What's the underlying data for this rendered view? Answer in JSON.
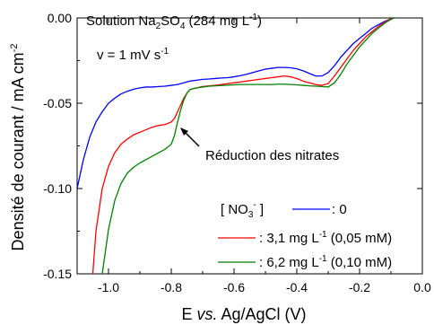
{
  "chart_data": {
    "type": "line",
    "xlabel": {
      "prefix": "E ",
      "italic": "vs.",
      "suffix": " Ag/AgCl (V)"
    },
    "ylabel": "Densité de courant / mA cm",
    "ylabel_sup": "-2",
    "xlim": [
      -1.1,
      0.0
    ],
    "ylim": [
      -0.15,
      0.0
    ],
    "x_ticks": [
      -1.0,
      -0.8,
      -0.6,
      -0.4,
      -0.2,
      0.0
    ],
    "x_tick_labels": [
      "-1.0",
      "-0.8",
      "-0.6",
      "-0.4",
      "-0.2",
      "0.0"
    ],
    "y_ticks": [
      0.0,
      -0.05,
      -0.1,
      -0.15
    ],
    "y_tick_labels": [
      "0.00",
      "-0.05",
      "-0.10",
      "-0.15"
    ],
    "grid": false,
    "legend_position": "bottom-right",
    "annotations": {
      "solution": {
        "text": "Solution Na",
        "sub": "2",
        "mid": "SO",
        "sub2": "4",
        "tail": " (284 mg L",
        "sup": "-1",
        "end": ")"
      },
      "scan_rate": {
        "text": "v = 1 mV s",
        "sup": "-1"
      },
      "arrow_label": "Réduction des nitrates",
      "arrow_target": {
        "x": -0.78,
        "y": -0.0555
      },
      "legend_title": {
        "text": "[ NO",
        "sub": "3",
        "sup": "-",
        "end": " ]"
      }
    },
    "series": [
      {
        "name": ": 0",
        "color": "#0000ff",
        "x": [
          -1.1,
          -1.08,
          -1.06,
          -1.04,
          -1.02,
          -1.0,
          -0.98,
          -0.96,
          -0.94,
          -0.92,
          -0.9,
          -0.88,
          -0.86,
          -0.84,
          -0.82,
          -0.8,
          -0.78,
          -0.76,
          -0.74,
          -0.72,
          -0.7,
          -0.68,
          -0.66,
          -0.64,
          -0.62,
          -0.6,
          -0.58,
          -0.56,
          -0.54,
          -0.52,
          -0.5,
          -0.48,
          -0.46,
          -0.44,
          -0.42,
          -0.4,
          -0.38,
          -0.36,
          -0.34,
          -0.32,
          -0.3,
          -0.28,
          -0.26,
          -0.24,
          -0.22,
          -0.2,
          -0.18,
          -0.16,
          -0.14,
          -0.12,
          -0.1,
          -0.09
        ],
        "y": [
          -0.1,
          -0.083,
          -0.07,
          -0.061,
          -0.055,
          -0.05,
          -0.047,
          -0.0445,
          -0.043,
          -0.0418,
          -0.041,
          -0.0405,
          -0.0405,
          -0.0402,
          -0.04,
          -0.0395,
          -0.039,
          -0.038,
          -0.037,
          -0.0365,
          -0.036,
          -0.0358,
          -0.0355,
          -0.0352,
          -0.035,
          -0.0345,
          -0.0338,
          -0.033,
          -0.032,
          -0.031,
          -0.03,
          -0.0295,
          -0.029,
          -0.029,
          -0.0292,
          -0.0298,
          -0.031,
          -0.0325,
          -0.034,
          -0.034,
          -0.032,
          -0.028,
          -0.023,
          -0.019,
          -0.015,
          -0.012,
          -0.009,
          -0.006,
          -0.004,
          -0.002,
          -0.0005,
          0.0
        ]
      },
      {
        "name": ": 3,1 mg L",
        "name_sup": "-1",
        "name_tail": " (0,05 mM)",
        "color": "#ff0000",
        "x": [
          -1.05,
          -1.04,
          -1.02,
          -1.0,
          -0.98,
          -0.96,
          -0.94,
          -0.92,
          -0.9,
          -0.88,
          -0.86,
          -0.84,
          -0.82,
          -0.8,
          -0.79,
          -0.78,
          -0.77,
          -0.76,
          -0.75,
          -0.74,
          -0.72,
          -0.7,
          -0.68,
          -0.66,
          -0.64,
          -0.62,
          -0.6,
          -0.58,
          -0.56,
          -0.54,
          -0.52,
          -0.5,
          -0.48,
          -0.46,
          -0.44,
          -0.42,
          -0.4,
          -0.38,
          -0.36,
          -0.34,
          -0.32,
          -0.3,
          -0.28,
          -0.26,
          -0.24,
          -0.22,
          -0.2,
          -0.18,
          -0.16,
          -0.14,
          -0.12,
          -0.1,
          -0.09
        ],
        "y": [
          -0.15,
          -0.125,
          -0.1,
          -0.087,
          -0.079,
          -0.074,
          -0.071,
          -0.0685,
          -0.067,
          -0.0655,
          -0.064,
          -0.063,
          -0.0625,
          -0.061,
          -0.059,
          -0.055,
          -0.051,
          -0.047,
          -0.044,
          -0.042,
          -0.041,
          -0.0402,
          -0.0398,
          -0.0395,
          -0.039,
          -0.0385,
          -0.038,
          -0.0375,
          -0.037,
          -0.0365,
          -0.036,
          -0.0355,
          -0.035,
          -0.0345,
          -0.034,
          -0.0345,
          -0.0355,
          -0.037,
          -0.038,
          -0.039,
          -0.0395,
          -0.0385,
          -0.034,
          -0.029,
          -0.024,
          -0.019,
          -0.015,
          -0.011,
          -0.008,
          -0.005,
          -0.0025,
          -0.0005,
          0.0
        ]
      },
      {
        "name": ": 6,2 mg L",
        "name_sup": "-1",
        "name_tail": " (0,10 mM)",
        "color": "#008000",
        "x": [
          -1.02,
          -1.0,
          -0.98,
          -0.96,
          -0.94,
          -0.92,
          -0.9,
          -0.88,
          -0.86,
          -0.84,
          -0.82,
          -0.8,
          -0.79,
          -0.78,
          -0.77,
          -0.76,
          -0.75,
          -0.74,
          -0.72,
          -0.7,
          -0.68,
          -0.66,
          -0.64,
          -0.62,
          -0.6,
          -0.58,
          -0.56,
          -0.54,
          -0.52,
          -0.5,
          -0.48,
          -0.46,
          -0.44,
          -0.42,
          -0.4,
          -0.38,
          -0.36,
          -0.34,
          -0.32,
          -0.3,
          -0.28,
          -0.26,
          -0.24,
          -0.22,
          -0.2,
          -0.18,
          -0.16,
          -0.14,
          -0.12,
          -0.1,
          -0.09
        ],
        "y": [
          -0.15,
          -0.124,
          -0.107,
          -0.097,
          -0.091,
          -0.0875,
          -0.085,
          -0.083,
          -0.081,
          -0.079,
          -0.077,
          -0.074,
          -0.069,
          -0.061,
          -0.054,
          -0.048,
          -0.044,
          -0.042,
          -0.041,
          -0.0405,
          -0.04,
          -0.0398,
          -0.0396,
          -0.0394,
          -0.0392,
          -0.039,
          -0.039,
          -0.039,
          -0.039,
          -0.039,
          -0.039,
          -0.0388,
          -0.0388,
          -0.039,
          -0.0392,
          -0.0395,
          -0.0398,
          -0.04,
          -0.0402,
          -0.0405,
          -0.038,
          -0.033,
          -0.027,
          -0.022,
          -0.017,
          -0.013,
          -0.009,
          -0.006,
          -0.003,
          -0.0008,
          0.0
        ]
      }
    ]
  }
}
